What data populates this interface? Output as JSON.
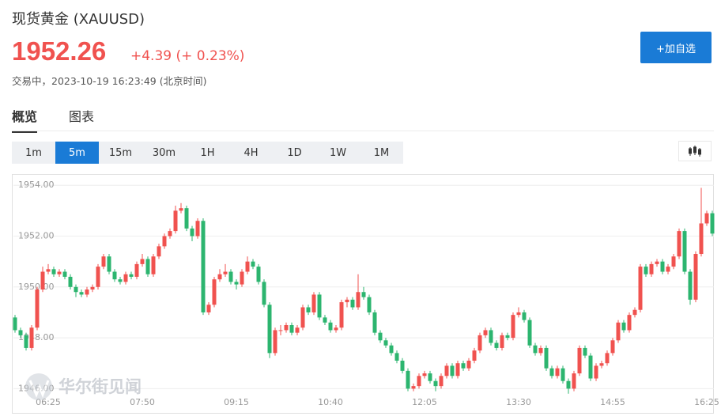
{
  "header": {
    "title": "现货黄金 (XAUUSD)",
    "price": "1952.26",
    "change": "+4.39 (+ 0.23%)",
    "status": "交易中，2023-10-19 16:23:49 (北京时间)",
    "button": "+加自选"
  },
  "tabs": [
    "概览",
    "图表"
  ],
  "selected_tab": 0,
  "timeframes": [
    "1m",
    "5m",
    "15m",
    "30m",
    "1H",
    "4H",
    "1D",
    "1W",
    "1M"
  ],
  "selected_timeframe": 1,
  "watermark": "华尔街见闻",
  "chart_data": {
    "type": "candlestick",
    "up_color": "#f0524f",
    "down_color": "#2cb56f",
    "grid": true,
    "ylim": [
      1945.7,
      1954.35
    ],
    "yticks": [
      {
        "value": 1946,
        "label": "1946.00"
      },
      {
        "value": 1948,
        "label": "1948.00"
      },
      {
        "value": 1950,
        "label": "1950.00"
      },
      {
        "value": 1952,
        "label": "1952.00"
      },
      {
        "value": 1954,
        "label": "1954.00"
      }
    ],
    "categories": [
      null,
      null,
      null,
      null,
      null,
      null,
      "06:25",
      null,
      null,
      null,
      null,
      null,
      null,
      null,
      null,
      null,
      null,
      null,
      null,
      null,
      null,
      null,
      null,
      "07:50",
      null,
      null,
      null,
      null,
      null,
      null,
      null,
      null,
      null,
      null,
      null,
      null,
      null,
      null,
      null,
      null,
      "09:15",
      null,
      null,
      null,
      null,
      null,
      null,
      null,
      null,
      null,
      null,
      null,
      null,
      null,
      null,
      null,
      null,
      "10:40",
      null,
      null,
      null,
      null,
      null,
      null,
      null,
      null,
      null,
      null,
      null,
      null,
      null,
      null,
      null,
      null,
      "12:05",
      null,
      null,
      null,
      null,
      null,
      null,
      null,
      null,
      null,
      null,
      null,
      null,
      null,
      null,
      null,
      null,
      "13:30",
      null,
      null,
      null,
      null,
      null,
      null,
      null,
      null,
      null,
      null,
      null,
      null,
      null,
      null,
      null,
      null,
      "14:55",
      null,
      null,
      null,
      null,
      null,
      null,
      null,
      null,
      null,
      null,
      null,
      null,
      null,
      null,
      null,
      null,
      "16:25",
      null
    ],
    "ohlc": [
      [
        1948.8,
        1948.9,
        1948.2,
        1948.3
      ],
      [
        1948.3,
        1948.4,
        1948.0,
        1948.1
      ],
      [
        1948.1,
        1948.2,
        1947.5,
        1947.6
      ],
      [
        1947.6,
        1948.5,
        1947.5,
        1948.4
      ],
      [
        1948.4,
        1950.0,
        1948.3,
        1949.9
      ],
      [
        1949.9,
        1950.8,
        1949.8,
        1950.6
      ],
      [
        1950.6,
        1950.9,
        1950.5,
        1950.7
      ],
      [
        1950.7,
        1950.8,
        1950.4,
        1950.5
      ],
      [
        1950.5,
        1950.7,
        1950.4,
        1950.6
      ],
      [
        1950.6,
        1950.7,
        1950.3,
        1950.4
      ],
      [
        1950.4,
        1950.5,
        1949.9,
        1950.0
      ],
      [
        1950.0,
        1950.1,
        1949.6,
        1949.8
      ],
      [
        1949.8,
        1949.9,
        1949.6,
        1949.7
      ],
      [
        1949.7,
        1950.0,
        1949.6,
        1949.9
      ],
      [
        1949.9,
        1950.1,
        1949.8,
        1950.0
      ],
      [
        1950.0,
        1950.9,
        1949.9,
        1950.8
      ],
      [
        1950.8,
        1951.3,
        1950.7,
        1951.2
      ],
      [
        1951.2,
        1951.3,
        1950.5,
        1950.6
      ],
      [
        1950.6,
        1950.7,
        1950.2,
        1950.3
      ],
      [
        1950.3,
        1950.4,
        1950.1,
        1950.2
      ],
      [
        1950.2,
        1950.6,
        1950.1,
        1950.5
      ],
      [
        1950.5,
        1950.6,
        1950.3,
        1950.4
      ],
      [
        1950.4,
        1951.0,
        1950.3,
        1950.9
      ],
      [
        1950.9,
        1951.3,
        1950.8,
        1951.1
      ],
      [
        1951.1,
        1951.2,
        1950.4,
        1950.5
      ],
      [
        1950.5,
        1951.3,
        1950.4,
        1951.2
      ],
      [
        1951.2,
        1951.7,
        1951.1,
        1951.6
      ],
      [
        1951.6,
        1952.1,
        1951.5,
        1952.0
      ],
      [
        1952.0,
        1952.3,
        1951.9,
        1952.2
      ],
      [
        1952.2,
        1953.2,
        1952.1,
        1953.0
      ],
      [
        1953.0,
        1953.3,
        1952.9,
        1953.1
      ],
      [
        1953.1,
        1953.2,
        1952.2,
        1952.3
      ],
      [
        1952.3,
        1952.4,
        1951.8,
        1952.0
      ],
      [
        1952.0,
        1952.7,
        1951.9,
        1952.6
      ],
      [
        1952.6,
        1952.7,
        1948.9,
        1949.0
      ],
      [
        1949.0,
        1949.4,
        1948.9,
        1949.3
      ],
      [
        1949.3,
        1950.4,
        1949.2,
        1950.3
      ],
      [
        1950.3,
        1950.7,
        1950.2,
        1950.5
      ],
      [
        1950.5,
        1950.9,
        1950.4,
        1950.6
      ],
      [
        1950.6,
        1950.7,
        1950.1,
        1950.2
      ],
      [
        1950.2,
        1950.3,
        1949.9,
        1950.1
      ],
      [
        1950.1,
        1950.7,
        1950.0,
        1950.6
      ],
      [
        1950.6,
        1951.2,
        1950.5,
        1951.0
      ],
      [
        1951.0,
        1951.1,
        1950.7,
        1950.8
      ],
      [
        1950.8,
        1950.9,
        1950.1,
        1950.2
      ],
      [
        1950.2,
        1950.3,
        1949.2,
        1949.3
      ],
      [
        1949.3,
        1949.4,
        1947.2,
        1947.4
      ],
      [
        1947.4,
        1948.4,
        1947.3,
        1948.3
      ],
      [
        1948.3,
        1948.5,
        1948.1,
        1948.3
      ],
      [
        1948.3,
        1948.6,
        1948.2,
        1948.5
      ],
      [
        1948.5,
        1948.6,
        1948.1,
        1948.2
      ],
      [
        1948.2,
        1948.5,
        1948.1,
        1948.4
      ],
      [
        1948.4,
        1949.3,
        1948.3,
        1949.2
      ],
      [
        1949.2,
        1949.3,
        1948.9,
        1949.0
      ],
      [
        1949.0,
        1949.8,
        1948.9,
        1949.7
      ],
      [
        1949.7,
        1949.8,
        1948.7,
        1948.8
      ],
      [
        1948.8,
        1948.9,
        1948.5,
        1948.6
      ],
      [
        1948.6,
        1948.7,
        1948.2,
        1948.3
      ],
      [
        1948.3,
        1948.5,
        1948.2,
        1948.4
      ],
      [
        1948.4,
        1949.5,
        1948.3,
        1949.4
      ],
      [
        1949.4,
        1949.6,
        1949.2,
        1949.5
      ],
      [
        1949.5,
        1949.6,
        1949.1,
        1949.2
      ],
      [
        1949.2,
        1950.5,
        1949.1,
        1949.8
      ],
      [
        1949.8,
        1950.0,
        1949.5,
        1949.6
      ],
      [
        1949.6,
        1949.7,
        1948.9,
        1949.0
      ],
      [
        1949.0,
        1949.1,
        1948.1,
        1948.2
      ],
      [
        1948.2,
        1948.3,
        1947.8,
        1947.9
      ],
      [
        1947.9,
        1948.0,
        1947.6,
        1947.7
      ],
      [
        1947.7,
        1947.8,
        1947.3,
        1947.4
      ],
      [
        1947.4,
        1947.5,
        1947.0,
        1947.1
      ],
      [
        1947.1,
        1947.2,
        1946.6,
        1946.7
      ],
      [
        1946.7,
        1946.8,
        1945.9,
        1946.0
      ],
      [
        1946.0,
        1946.2,
        1945.9,
        1946.1
      ],
      [
        1946.1,
        1946.6,
        1946.0,
        1946.5
      ],
      [
        1946.5,
        1946.7,
        1946.4,
        1946.6
      ],
      [
        1946.6,
        1946.7,
        1946.2,
        1946.3
      ],
      [
        1946.3,
        1946.4,
        1945.9,
        1946.1
      ],
      [
        1946.1,
        1946.6,
        1946.0,
        1946.5
      ],
      [
        1946.5,
        1947.0,
        1946.4,
        1946.9
      ],
      [
        1946.9,
        1947.0,
        1946.4,
        1946.5
      ],
      [
        1946.5,
        1947.1,
        1946.4,
        1947.0
      ],
      [
        1947.0,
        1947.1,
        1946.7,
        1946.8
      ],
      [
        1946.8,
        1947.2,
        1946.7,
        1947.1
      ],
      [
        1947.1,
        1947.6,
        1947.0,
        1947.5
      ],
      [
        1947.5,
        1948.2,
        1947.4,
        1948.1
      ],
      [
        1948.1,
        1948.4,
        1948.0,
        1948.3
      ],
      [
        1948.3,
        1948.4,
        1947.7,
        1947.8
      ],
      [
        1947.8,
        1947.9,
        1947.5,
        1947.6
      ],
      [
        1947.6,
        1948.2,
        1947.5,
        1948.1
      ],
      [
        1948.1,
        1948.2,
        1947.9,
        1948.0
      ],
      [
        1948.0,
        1949.0,
        1947.9,
        1948.9
      ],
      [
        1948.9,
        1949.2,
        1948.8,
        1949.0
      ],
      [
        1949.0,
        1949.1,
        1948.6,
        1948.7
      ],
      [
        1948.7,
        1948.8,
        1947.6,
        1947.7
      ],
      [
        1947.7,
        1947.8,
        1947.3,
        1947.4
      ],
      [
        1947.4,
        1947.7,
        1947.3,
        1947.6
      ],
      [
        1947.6,
        1947.7,
        1946.7,
        1946.8
      ],
      [
        1946.8,
        1946.9,
        1946.4,
        1946.5
      ],
      [
        1946.5,
        1946.9,
        1946.4,
        1946.8
      ],
      [
        1946.8,
        1946.9,
        1946.2,
        1946.3
      ],
      [
        1946.3,
        1946.4,
        1945.8,
        1946.0
      ],
      [
        1946.0,
        1946.7,
        1945.9,
        1946.6
      ],
      [
        1946.6,
        1947.7,
        1946.5,
        1947.6
      ],
      [
        1947.6,
        1947.7,
        1947.2,
        1947.3
      ],
      [
        1947.3,
        1947.4,
        1946.3,
        1946.4
      ],
      [
        1946.4,
        1947.0,
        1946.3,
        1946.9
      ],
      [
        1946.9,
        1947.1,
        1946.8,
        1947.0
      ],
      [
        1947.0,
        1947.5,
        1946.9,
        1947.4
      ],
      [
        1947.4,
        1948.0,
        1947.3,
        1947.9
      ],
      [
        1947.9,
        1948.7,
        1947.8,
        1948.6
      ],
      [
        1948.6,
        1948.7,
        1948.2,
        1948.3
      ],
      [
        1948.3,
        1949.0,
        1948.2,
        1948.9
      ],
      [
        1948.9,
        1949.2,
        1948.8,
        1949.1
      ],
      [
        1949.1,
        1950.9,
        1949.0,
        1950.8
      ],
      [
        1950.8,
        1950.9,
        1950.4,
        1950.5
      ],
      [
        1950.5,
        1951.0,
        1950.4,
        1950.9
      ],
      [
        1950.9,
        1951.1,
        1950.8,
        1951.0
      ],
      [
        1951.0,
        1951.1,
        1950.5,
        1950.6
      ],
      [
        1950.6,
        1950.9,
        1950.5,
        1950.8
      ],
      [
        1950.8,
        1951.3,
        1950.7,
        1951.2
      ],
      [
        1951.2,
        1952.3,
        1951.1,
        1952.2
      ],
      [
        1952.2,
        1952.3,
        1950.5,
        1950.6
      ],
      [
        1950.6,
        1950.7,
        1949.3,
        1949.5
      ],
      [
        1949.5,
        1951.4,
        1949.4,
        1951.3
      ],
      [
        1951.3,
        1953.9,
        1951.2,
        1952.5
      ],
      [
        1952.5,
        1953.0,
        1952.4,
        1952.9
      ],
      [
        1952.9,
        1953.0,
        1952.0,
        1952.1
      ]
    ]
  }
}
